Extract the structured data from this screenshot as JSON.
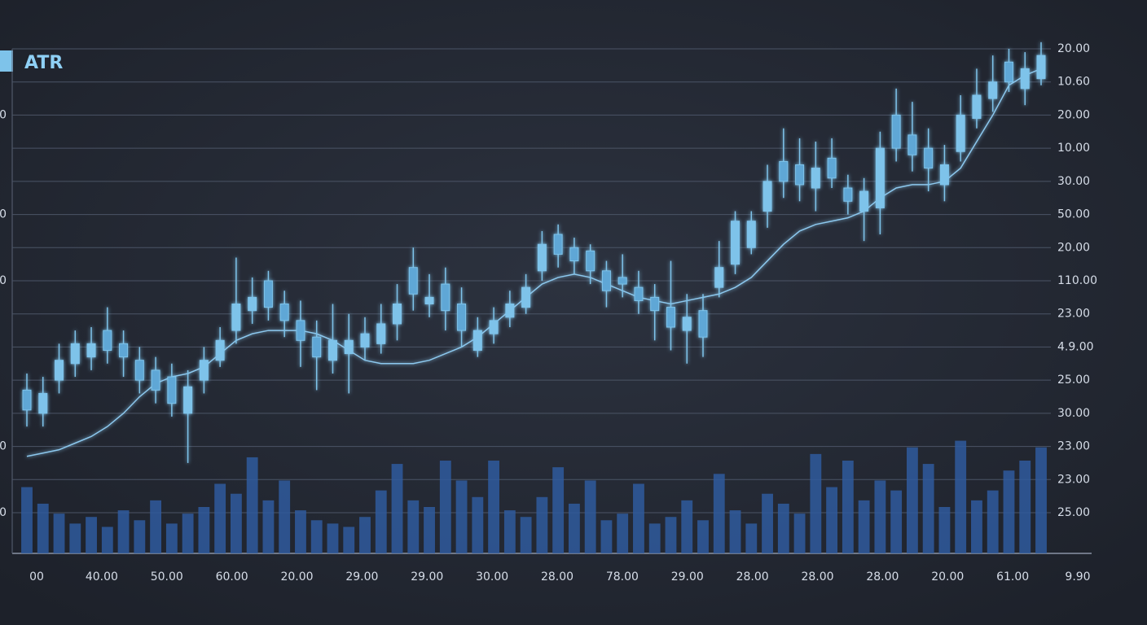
{
  "chart_data": {
    "type": "candlestick",
    "title": "ATR",
    "y_labels": [
      "20.00",
      "10.60",
      "20.00",
      "10.00",
      "30.00",
      "50.00",
      "20.00",
      "110.00",
      "23.00",
      "4.9.00",
      "25.00",
      "30.00",
      "23.00",
      "23.00",
      "25.00"
    ],
    "left_labels": [
      "0",
      "0",
      "0",
      "0",
      "0"
    ],
    "x_labels": [
      "00",
      "40.00",
      "50.00",
      "60.00",
      "20.00",
      "29.00",
      "29.00",
      "30.00",
      "28.00",
      "78.00",
      "29.00",
      "28.00",
      "28.00",
      "28.00",
      "20.00",
      "61.00",
      "9.90"
    ],
    "color": "#7ec3ea",
    "volume_color": "#2f5b9e",
    "line_color": "#8cc8ee",
    "grid": true,
    "open": [
      3.7,
      3.0,
      4.0,
      4.5,
      4.7,
      5.5,
      5.1,
      4.6,
      4.3,
      4.1,
      3.0,
      4.0,
      4.6,
      5.5,
      6.1,
      7.0,
      6.3,
      5.8,
      5.3,
      4.6,
      4.8,
      5.0,
      5.1,
      5.7,
      7.4,
      6.3,
      6.9,
      6.3,
      4.9,
      5.4,
      5.9,
      6.2,
      7.3,
      8.4,
      8.0,
      7.9,
      7.3,
      7.1,
      6.8,
      6.5,
      6.2,
      5.5,
      6.1,
      6.8,
      7.5,
      8.0,
      9.1,
      10.6,
      10.5,
      9.8,
      10.7,
      9.8,
      9.1,
      9.2,
      12.0,
      11.4,
      11.0,
      9.9,
      10.9,
      11.9,
      12.5,
      13.6,
      12.8,
      13.1
    ],
    "high": [
      4.2,
      4.1,
      5.1,
      5.5,
      5.6,
      6.2,
      5.5,
      5.0,
      4.7,
      4.5,
      4.3,
      5.0,
      5.6,
      7.7,
      7.1,
      7.3,
      6.7,
      6.4,
      5.8,
      6.3,
      6.0,
      5.9,
      6.3,
      6.9,
      8.0,
      7.2,
      7.4,
      6.8,
      5.9,
      6.2,
      6.7,
      7.2,
      8.5,
      8.7,
      8.3,
      8.1,
      7.6,
      7.8,
      7.3,
      6.9,
      7.6,
      6.6,
      6.6,
      8.2,
      9.1,
      9.1,
      10.5,
      11.6,
      11.3,
      11.2,
      11.3,
      10.2,
      10.1,
      11.5,
      12.8,
      12.4,
      11.6,
      11.1,
      12.6,
      13.4,
      13.8,
      14.0,
      13.9,
      14.2
    ],
    "low": [
      2.6,
      2.6,
      3.6,
      4.1,
      4.3,
      4.5,
      4.1,
      3.6,
      3.3,
      2.9,
      1.5,
      3.6,
      4.4,
      5.1,
      5.7,
      5.8,
      5.3,
      4.4,
      3.7,
      4.2,
      3.6,
      4.6,
      4.8,
      5.2,
      6.1,
      5.9,
      5.5,
      5.0,
      4.7,
      5.1,
      5.6,
      6.0,
      7.0,
      7.4,
      7.2,
      6.9,
      6.2,
      6.5,
      6.0,
      5.2,
      4.9,
      4.5,
      4.7,
      6.5,
      7.2,
      7.8,
      8.6,
      9.5,
      9.4,
      9.1,
      9.8,
      9.0,
      8.2,
      8.4,
      10.6,
      10.3,
      9.7,
      9.4,
      10.6,
      11.6,
      12.1,
      12.7,
      12.3,
      12.9
    ],
    "close": [
      3.1,
      3.6,
      4.6,
      5.1,
      5.1,
      4.9,
      4.7,
      4.0,
      3.7,
      3.3,
      3.8,
      4.6,
      5.2,
      6.3,
      6.5,
      6.2,
      5.8,
      5.2,
      4.7,
      5.2,
      5.2,
      5.4,
      5.7,
      6.3,
      6.6,
      6.5,
      6.1,
      5.5,
      5.5,
      5.8,
      6.3,
      6.8,
      8.1,
      7.8,
      7.6,
      7.3,
      6.7,
      6.9,
      6.4,
      6.1,
      5.6,
      5.9,
      5.3,
      7.4,
      8.8,
      8.8,
      10.0,
      10.0,
      9.9,
      10.4,
      10.1,
      9.4,
      9.7,
      11.0,
      11.0,
      10.8,
      10.4,
      10.5,
      12.0,
      12.6,
      13.0,
      13.0,
      13.4,
      13.8
    ],
    "average": [
      1.7,
      1.8,
      1.9,
      2.1,
      2.3,
      2.6,
      3.0,
      3.5,
      3.9,
      4.1,
      4.2,
      4.4,
      4.8,
      5.2,
      5.4,
      5.5,
      5.5,
      5.5,
      5.4,
      5.2,
      4.9,
      4.6,
      4.5,
      4.5,
      4.5,
      4.6,
      4.8,
      5.0,
      5.3,
      5.7,
      6.1,
      6.5,
      6.9,
      7.1,
      7.2,
      7.1,
      6.9,
      6.7,
      6.5,
      6.4,
      6.3,
      6.4,
      6.5,
      6.6,
      6.8,
      7.1,
      7.6,
      8.1,
      8.5,
      8.7,
      8.8,
      8.9,
      9.1,
      9.5,
      9.8,
      9.9,
      9.9,
      10.0,
      10.4,
      11.2,
      12.0,
      12.9,
      13.2,
      13.4
    ],
    "volume": [
      2.0,
      1.5,
      1.2,
      0.9,
      1.1,
      0.8,
      1.3,
      1.0,
      1.6,
      0.9,
      1.2,
      1.4,
      2.1,
      1.8,
      2.9,
      1.6,
      2.2,
      1.3,
      1.0,
      0.9,
      0.8,
      1.1,
      1.9,
      2.7,
      1.6,
      1.4,
      2.8,
      2.2,
      1.7,
      2.8,
      1.3,
      1.1,
      1.7,
      2.6,
      1.5,
      2.2,
      1.0,
      1.2,
      2.1,
      0.9,
      1.1,
      1.6,
      1.0,
      2.4,
      1.3,
      0.9,
      1.8,
      1.5,
      1.2,
      3.0,
      2.0,
      2.8,
      1.6,
      2.2,
      1.9,
      3.2,
      2.7,
      1.4,
      3.4,
      1.6,
      1.9,
      2.5,
      2.8,
      3.2
    ]
  }
}
